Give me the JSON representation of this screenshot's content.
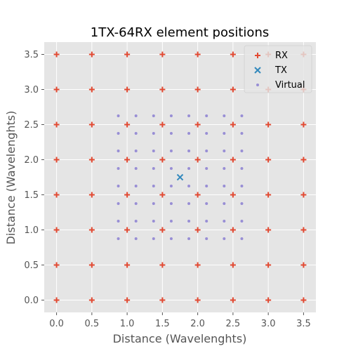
{
  "chart_data": {
    "type": "scatter",
    "title": "1TX-64RX element positions",
    "xlabel": "Distance (Wavelenghts)",
    "ylabel": "Distance (Wavelenghts)",
    "xlim": [
      -0.175,
      3.675
    ],
    "ylim": [
      -0.175,
      3.675
    ],
    "xticks": [
      0.0,
      0.5,
      1.0,
      1.5,
      2.0,
      2.5,
      3.0,
      3.5
    ],
    "yticks": [
      0.0,
      0.5,
      1.0,
      1.5,
      2.0,
      2.5,
      3.0,
      3.5
    ],
    "tick_labels": [
      "0.0",
      "0.5",
      "1.0",
      "1.5",
      "2.0",
      "2.5",
      "3.0",
      "3.5"
    ],
    "grid": true,
    "legend_position": "top-right",
    "series": [
      {
        "name": "RX",
        "marker": "plus",
        "color": "#E24A33",
        "x_values": [
          0.0,
          0.5,
          1.0,
          1.5,
          2.0,
          2.5,
          3.0,
          3.5
        ],
        "y_values": [
          0.0,
          0.5,
          1.0,
          1.5,
          2.0,
          2.5,
          3.0,
          3.5
        ]
      },
      {
        "name": "TX",
        "marker": "x",
        "color": "#348ABD",
        "x": [
          1.75
        ],
        "y": [
          1.75
        ]
      },
      {
        "name": "Virtual",
        "marker": "dot",
        "color": "#988ED5",
        "x_values": [
          0.875,
          1.125,
          1.375,
          1.625,
          1.875,
          2.125,
          2.375,
          2.625
        ],
        "y_values": [
          0.875,
          1.125,
          1.375,
          1.625,
          1.875,
          2.125,
          2.375,
          2.625
        ]
      }
    ]
  }
}
